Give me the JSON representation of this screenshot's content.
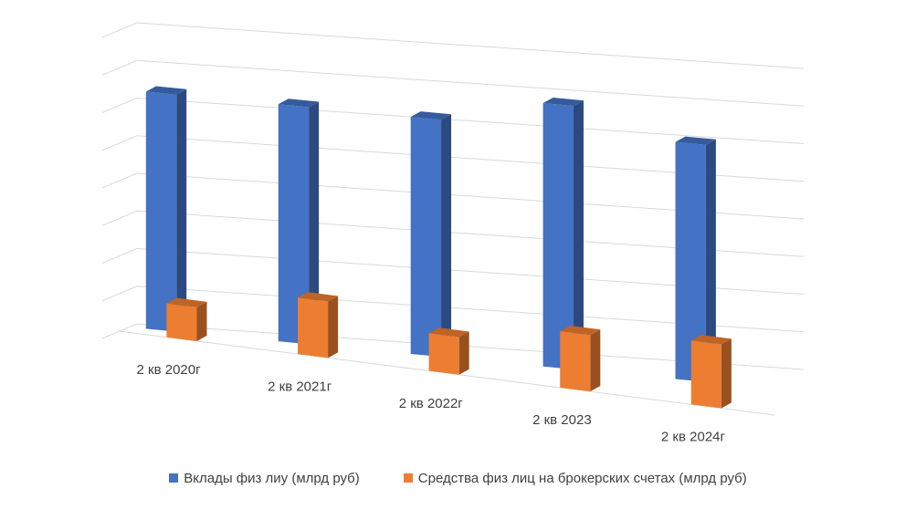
{
  "chart_data": {
    "type": "bar",
    "categories": [
      "2 кв 2020г",
      "2 кв 2021г",
      "2 кв 2022г",
      "2 кв 2023",
      "2 кв 2024г"
    ],
    "series": [
      {
        "name": "Вклады физ лиу (млрд руб)",
        "color": "#4472C4",
        "values": [
          6.3,
          6.3,
          6.3,
          7.0,
          6.3
        ]
      },
      {
        "name": "Средства физ лиц на брокерских счетах (млрд руб)",
        "color": "#ED7D31",
        "values": [
          0.9,
          1.5,
          1.0,
          1.5,
          1.7
        ]
      }
    ],
    "ylim": [
      0,
      8
    ],
    "grid": true,
    "legend_position": "bottom",
    "style": "3d-clustered-column"
  }
}
